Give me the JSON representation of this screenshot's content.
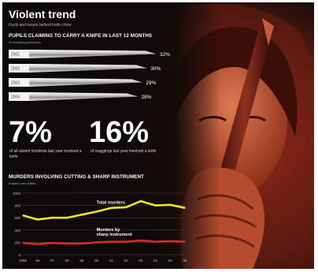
{
  "header": {
    "title": "Violent trend",
    "subtitle": "Facts and issues behind knife crime"
  },
  "colors": {
    "background": "#0d0a09",
    "photo_red": "#c8412b",
    "total_line": "#f2e41e",
    "sharp_line": "#e0281f",
    "text": "#ffffff"
  },
  "stats": [
    {
      "value": "7%",
      "caption": "of all violent incidents last year involved a knife"
    },
    {
      "value": "16%",
      "caption": "of muggings last year involved a knife"
    }
  ],
  "chart_data": [
    {
      "type": "bar",
      "title": "PUPILS CLAIMING TO CARRY A KNIFE IN LAST 12 MONTHS",
      "note": "% excluding penknives",
      "categories": [
        "2001",
        "2002",
        "2003",
        "2004"
      ],
      "values": [
        32,
        30,
        29,
        28
      ],
      "value_labels": [
        "32%",
        "30%",
        "29%",
        "28%"
      ],
      "xlim": [
        0,
        32
      ]
    },
    {
      "type": "line",
      "title": "MURDERS INVOLVING CUTTING & SHARP INSTRUMENT",
      "note": "England and Wales",
      "x": [
        "1995",
        "96",
        "97",
        "98",
        "99",
        "00",
        "01",
        "02",
        "03",
        "04",
        "05",
        "06"
      ],
      "ylim": [
        0,
        1000
      ],
      "yticks": [
        0,
        200,
        400,
        600,
        800,
        1000
      ],
      "grid": true,
      "series": [
        {
          "name": "Total murders",
          "color": "#f2e41e",
          "values": [
            640,
            570,
            600,
            600,
            650,
            700,
            760,
            770,
            870,
            800,
            810,
            760
          ]
        },
        {
          "name": "Murders by sharp instrument",
          "color": "#e0281f",
          "values": [
            190,
            170,
            190,
            180,
            180,
            200,
            210,
            210,
            230,
            210,
            220,
            210
          ]
        }
      ],
      "annotations": [
        "Total murders",
        "Murders by sharp instrument"
      ]
    }
  ]
}
